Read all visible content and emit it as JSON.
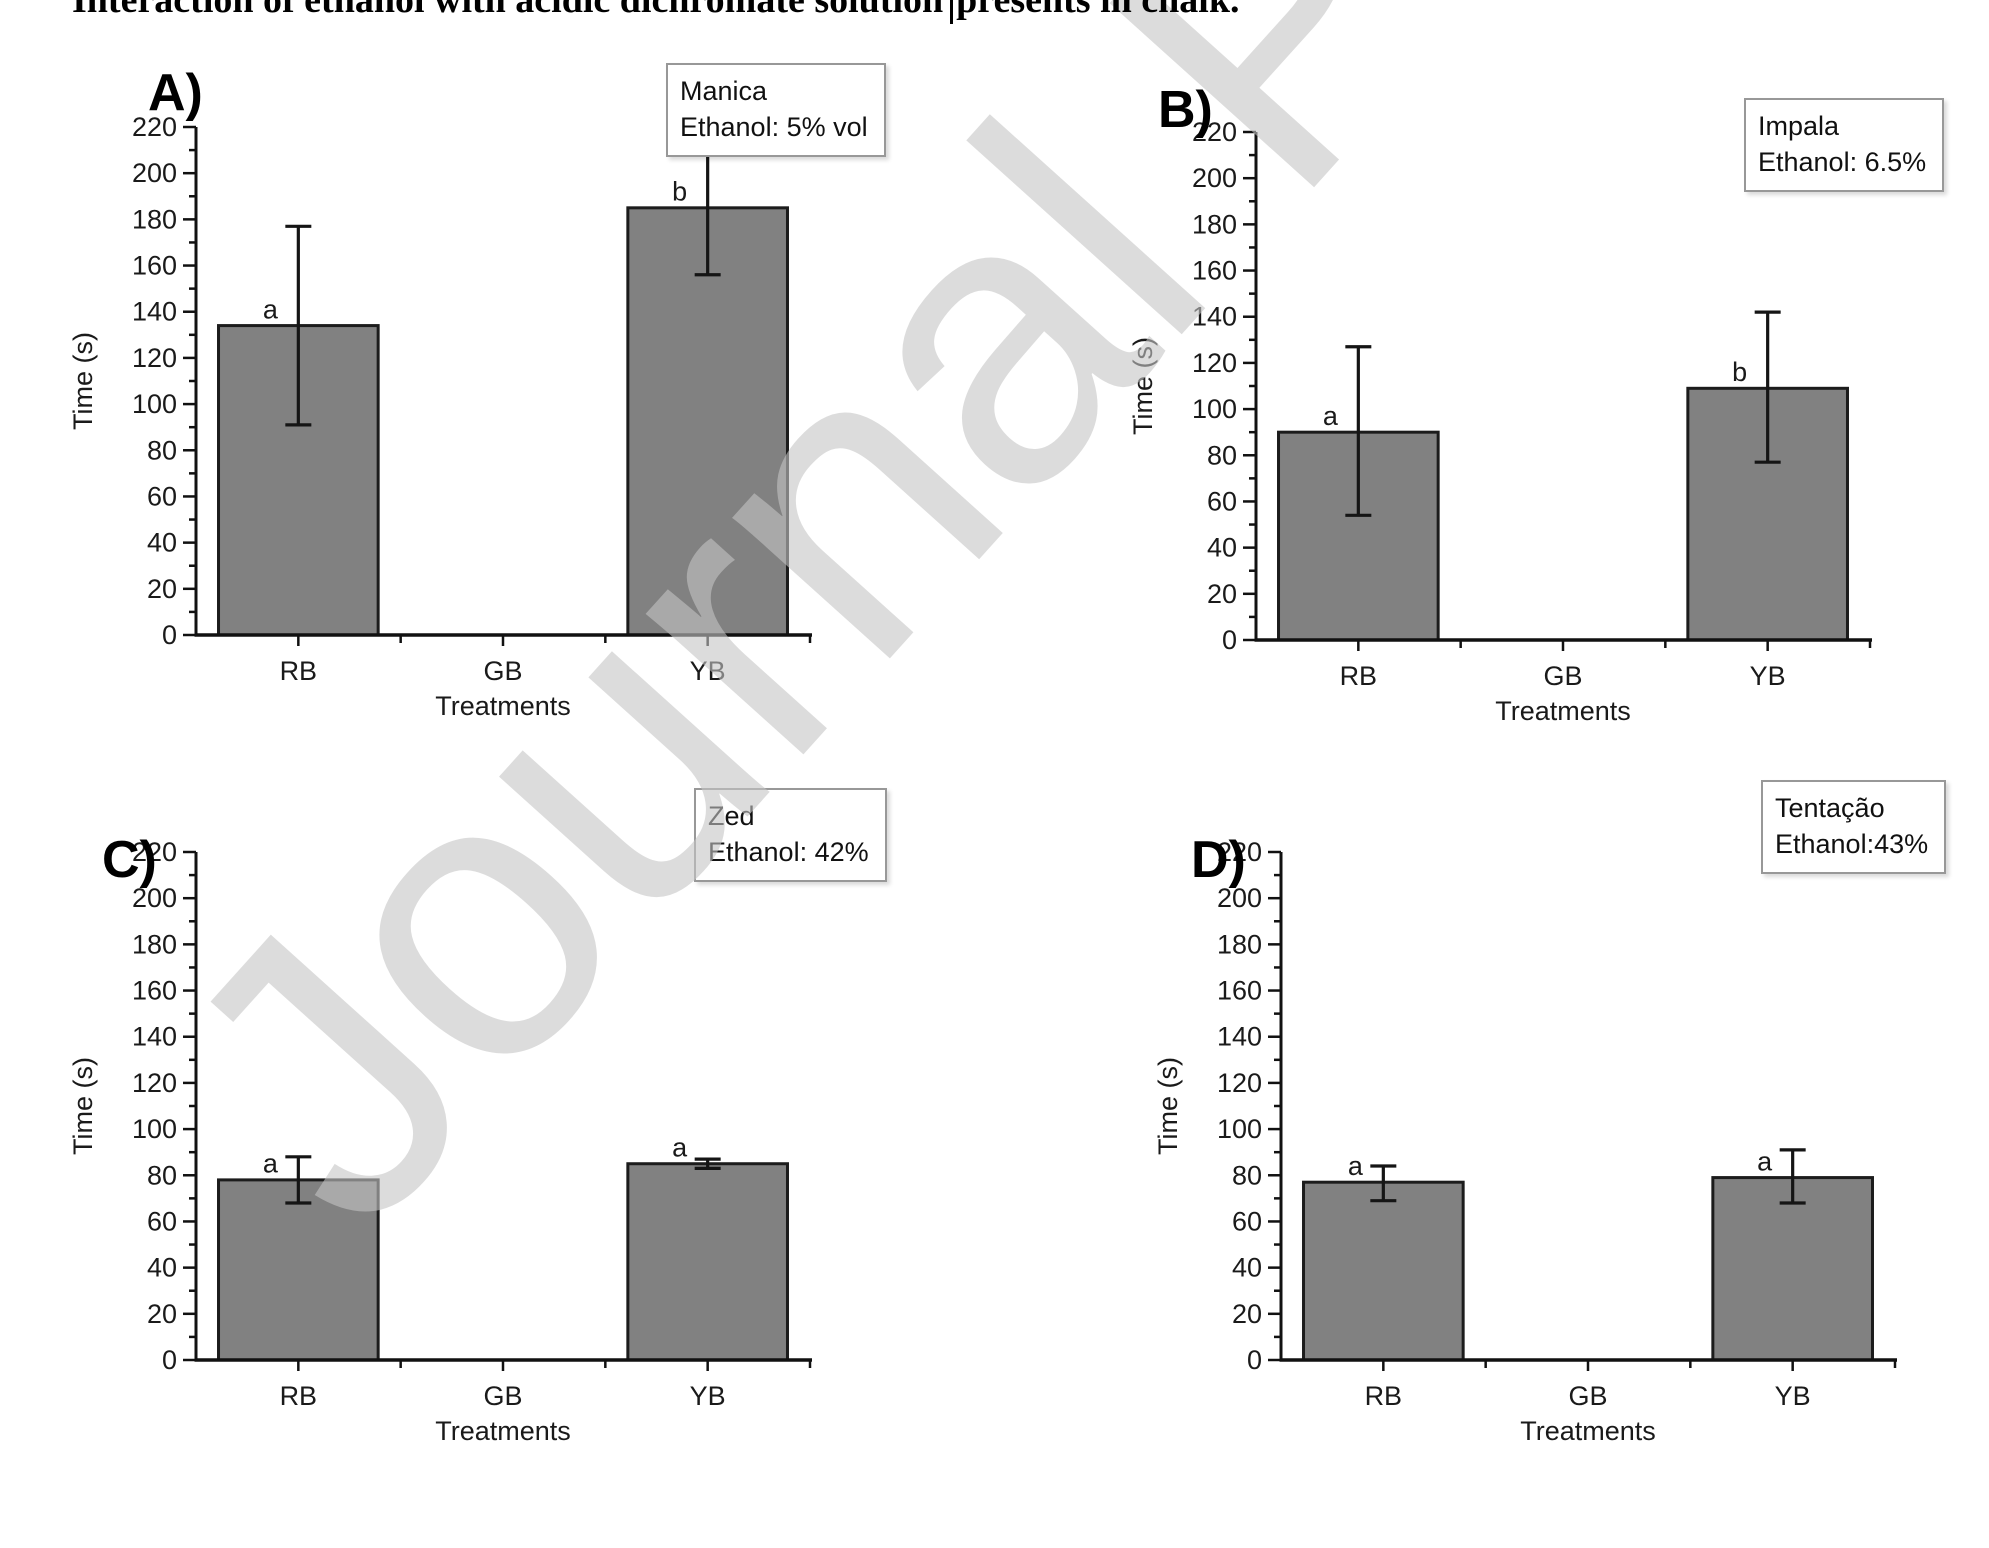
{
  "caption": {
    "text_before_cursor": "Interaction of ethanol with acidic dichromate solution",
    "text_after_cursor": "presents in chalk."
  },
  "watermark": {
    "text": "Journal Pre-proof"
  },
  "colors": {
    "bar_fill": "#818181",
    "bar_stroke": "#1c1c1c",
    "axis": "#111111",
    "error_bar": "#151515",
    "tick_label": "#1a1a1a",
    "watermark": "#c5c5c5"
  },
  "chart_data": [
    {
      "id": "A",
      "panel_label": "A)",
      "type": "bar",
      "legend_lines": [
        "Manica",
        "Ethanol: 5% vol"
      ],
      "xlabel": "Treatments",
      "ylabel": "Time (s)",
      "ylim": [
        0,
        220
      ],
      "ytick_major": 20,
      "ytick_minor": 10,
      "categories": [
        "RB",
        "GB",
        "YB"
      ],
      "values": [
        134,
        null,
        185
      ],
      "error_low": [
        91,
        null,
        156
      ],
      "error_high": [
        177,
        null,
        215
      ],
      "sig_labels": [
        "a",
        null,
        "b"
      ]
    },
    {
      "id": "B",
      "panel_label": "B)",
      "type": "bar",
      "legend_lines": [
        "Impala",
        "Ethanol: 6.5%"
      ],
      "xlabel": "Treatments",
      "ylabel": "Time (s)",
      "ylim": [
        0,
        220
      ],
      "ytick_major": 20,
      "ytick_minor": 10,
      "categories": [
        "RB",
        "GB",
        "YB"
      ],
      "values": [
        90,
        null,
        109
      ],
      "error_low": [
        54,
        null,
        77
      ],
      "error_high": [
        127,
        null,
        142
      ],
      "sig_labels": [
        "a",
        null,
        "b"
      ]
    },
    {
      "id": "C",
      "panel_label": "C)",
      "type": "bar",
      "legend_lines": [
        "Zed",
        "Ethanol: 42%"
      ],
      "xlabel": "Treatments",
      "ylabel": "Time (s)",
      "ylim": [
        0,
        220
      ],
      "ytick_major": 20,
      "ytick_minor": 10,
      "categories": [
        "RB",
        "GB",
        "YB"
      ],
      "values": [
        78,
        null,
        85
      ],
      "error_low": [
        68,
        null,
        83
      ],
      "error_high": [
        88,
        null,
        87
      ],
      "sig_labels": [
        "a",
        null,
        "a"
      ]
    },
    {
      "id": "D",
      "panel_label": "D)",
      "type": "bar",
      "legend_lines": [
        "Tentação",
        "Ethanol:43%"
      ],
      "xlabel": "Treatments",
      "ylabel": "Time (s)",
      "ylim": [
        0,
        220
      ],
      "ytick_major": 20,
      "ytick_minor": 10,
      "categories": [
        "RB",
        "GB",
        "YB"
      ],
      "values": [
        77,
        null,
        79
      ],
      "error_low": [
        69,
        null,
        68
      ],
      "error_high": [
        84,
        null,
        91
      ],
      "sig_labels": [
        "a",
        null,
        "a"
      ]
    }
  ]
}
